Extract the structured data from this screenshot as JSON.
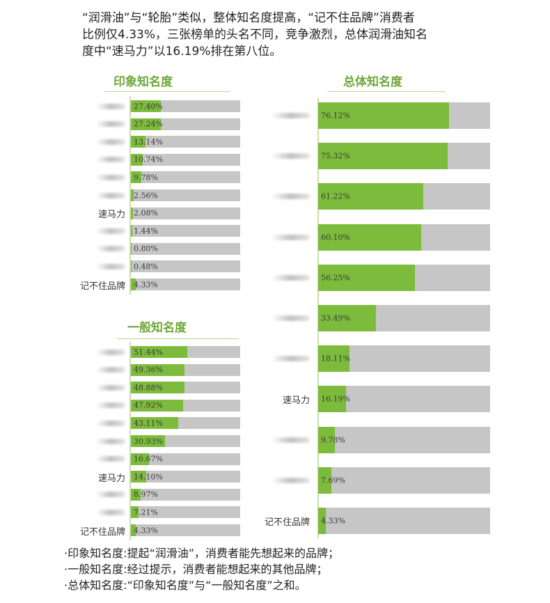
{
  "intro": {
    "line1": "“润滑油”与“轮胎”类似，整体知名度提高，“记不住品牌”消费者",
    "line2": "比例仅4.33%，三张榜单的头名不同，竞争激烈，总体润滑油知名",
    "line3": "度中“速马力”以16.19%排在第八位。"
  },
  "colors": {
    "fill": "#7dbb3d",
    "background_bar": "#c6c6c6",
    "title": "#6fa83b"
  },
  "chart_data": [
    {
      "type": "bar",
      "orientation": "horizontal",
      "title": "印象知名度",
      "categories": [
        "",
        "",
        "",
        "",
        "",
        "",
        "速马力",
        "",
        "",
        "",
        "记不住品牌"
      ],
      "values": [
        27.4,
        27.24,
        13.14,
        10.74,
        9.78,
        2.56,
        2.08,
        1.44,
        0.8,
        0.48,
        4.33
      ],
      "value_labels": [
        "27.40%",
        "27.24%",
        "13.14%",
        "10.74%",
        "9.78%",
        "2.56%",
        "2.08%",
        "1.44%",
        "0.80%",
        "0.48%",
        "4.33%"
      ],
      "xlim": [
        0,
        100
      ]
    },
    {
      "type": "bar",
      "orientation": "horizontal",
      "title": "一般知名度",
      "categories": [
        "",
        "",
        "",
        "",
        "",
        "",
        "",
        "速马力",
        "",
        "",
        "记不住品牌"
      ],
      "values": [
        51.44,
        49.36,
        48.88,
        47.92,
        43.11,
        30.93,
        16.67,
        14.1,
        8.97,
        7.21,
        4.33
      ],
      "value_labels": [
        "51.44%",
        "49.36%",
        "48.88%",
        "47.92%",
        "43.11%",
        "30.93%",
        "16.67%",
        "14.10%",
        "8.97%",
        "7.21%",
        "4.33%"
      ],
      "xlim": [
        0,
        100
      ]
    },
    {
      "type": "bar",
      "orientation": "horizontal",
      "title": "总体知名度",
      "categories": [
        "",
        "",
        "",
        "",
        "",
        "",
        "",
        "速马力",
        "",
        "",
        "记不住品牌"
      ],
      "values": [
        76.12,
        75.32,
        61.22,
        60.1,
        56.25,
        33.49,
        18.11,
        16.19,
        9.78,
        7.69,
        4.33
      ],
      "value_labels": [
        "76.12%",
        "75.32%",
        "61.22%",
        "60.10%",
        "56.25%",
        "33.49%",
        "18.11%",
        "16.19%",
        "9.78%",
        "7.69%",
        "4.33%"
      ],
      "xlim": [
        0,
        100
      ]
    }
  ],
  "notes": {
    "line1": "·印象知名度:提起“润滑油”，消费者能先想起来的品牌；",
    "line2": "·一般知名度:经过提示，消费者能想起来的其他品牌；",
    "line3": "·总体知名度:“印象知名度”与“一般知名度”之和。"
  }
}
